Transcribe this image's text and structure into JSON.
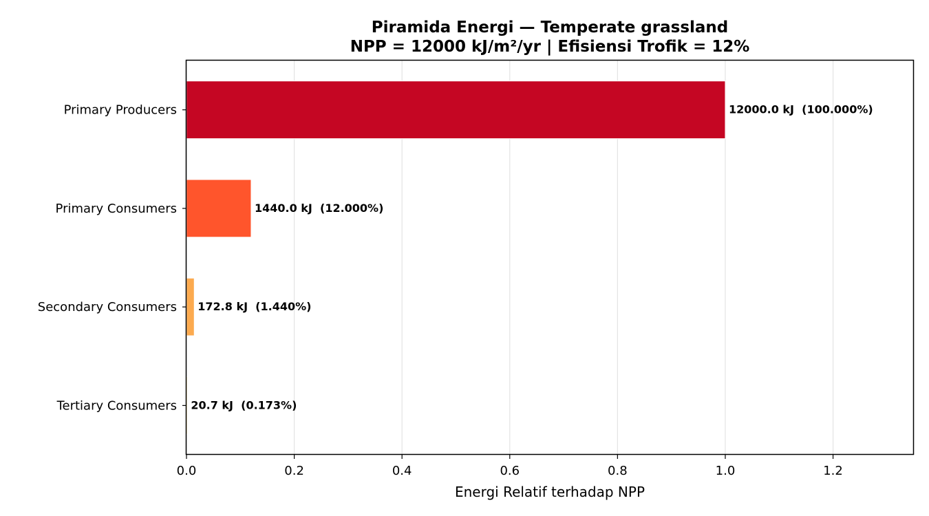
{
  "chart_data": {
    "type": "bar",
    "orientation": "horizontal",
    "title": "Piramida Energi — Temperate grassland",
    "subtitle": "NPP = 12000 kJ/m²/yr | Efisiensi Trofik = 12%",
    "xlabel": "Energi Relatif terhadap NPP",
    "ylabel": "",
    "xlim": [
      0,
      1.35
    ],
    "xticks": [
      "0.0",
      "0.2",
      "0.4",
      "0.6",
      "0.8",
      "1.0",
      "1.2"
    ],
    "xtick_values": [
      0,
      0.2,
      0.4,
      0.6,
      0.8,
      1.0,
      1.2
    ],
    "grid": "vertical",
    "categories": [
      "Primary Producers",
      "Primary Consumers",
      "Secondary Consumers",
      "Tertiary Consumers"
    ],
    "values": [
      1.0,
      0.12,
      0.0144,
      0.001728
    ],
    "data_labels": [
      "12000.0 kJ  (100.000%)",
      "1440.0 kJ  (12.000%)",
      "172.8 kJ  (1.440%)",
      "20.7 kJ  (0.173%)"
    ],
    "colors": [
      "#c50623",
      "#ff552c",
      "#fcaa4f",
      "#fee390"
    ]
  }
}
